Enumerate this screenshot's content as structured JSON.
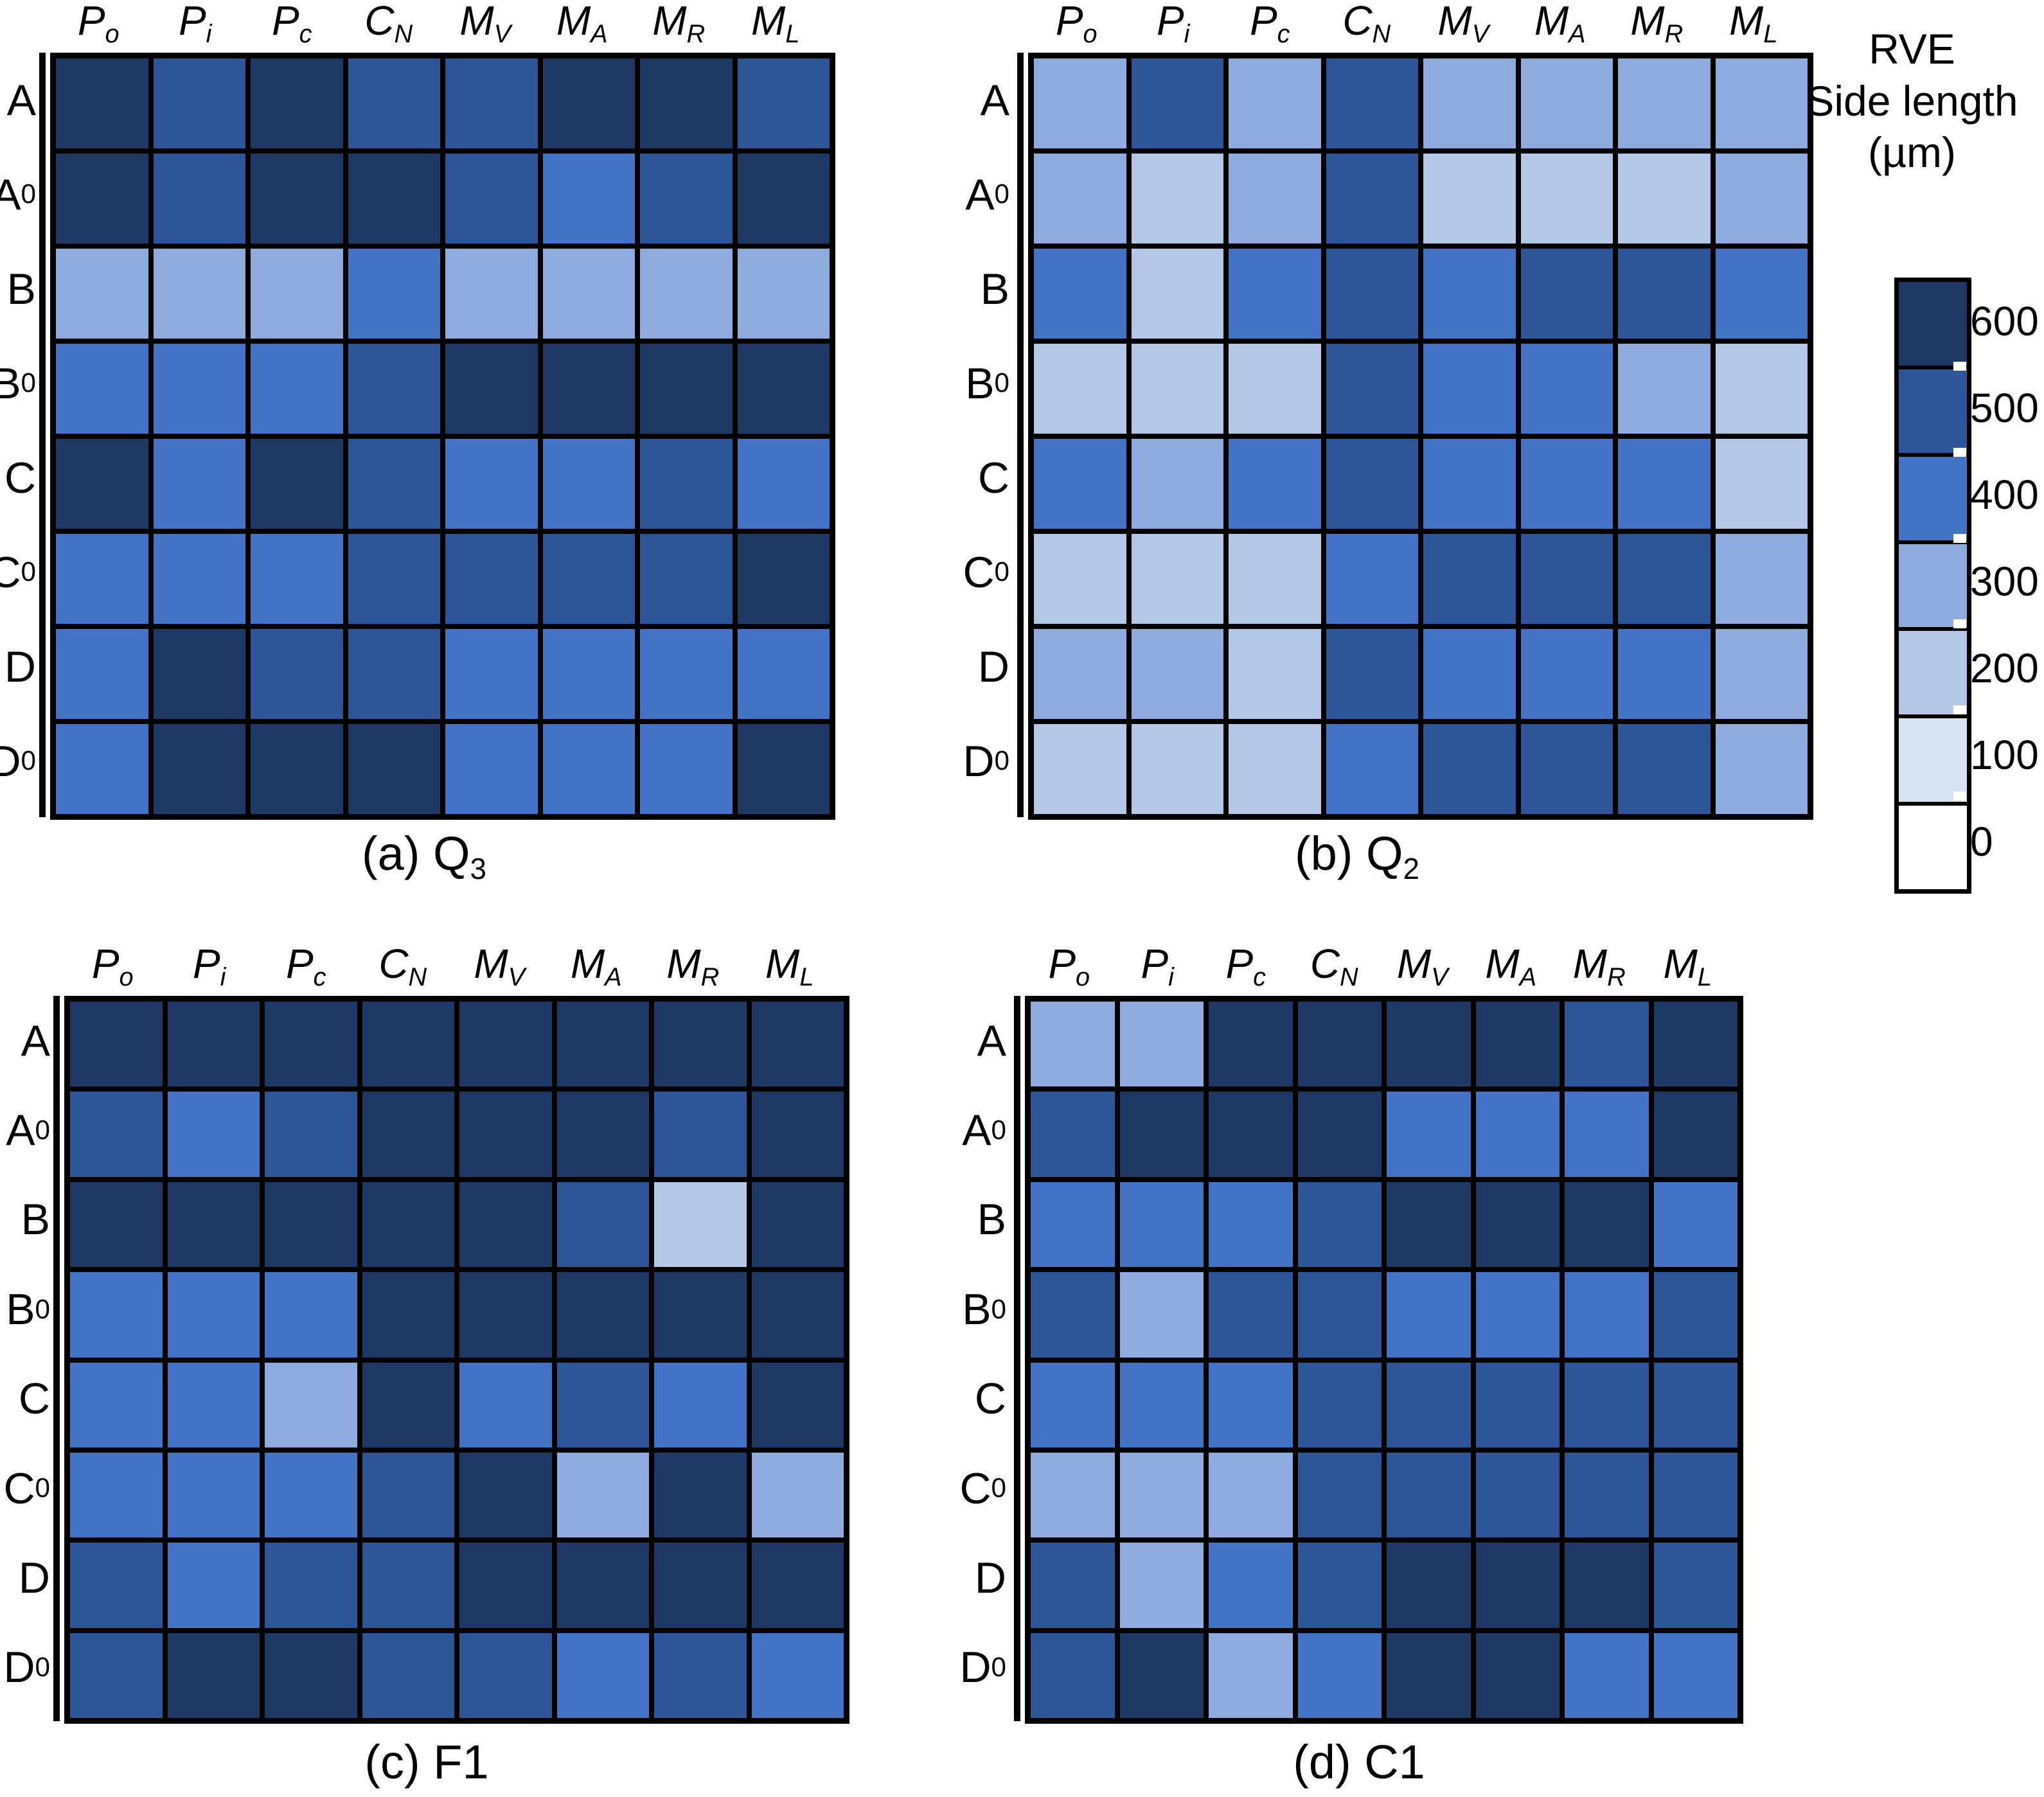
{
  "legend": {
    "title_lines": [
      "RVE",
      "Side length",
      "(µm)"
    ],
    "ticks": [
      "600",
      "500",
      "400",
      "300",
      "200",
      "100",
      "0"
    ],
    "palette": {
      "600": "#1F3864",
      "500": "#2E5597",
      "400": "#4472C4",
      "300": "#8FAADC",
      "200": "#B4C7E7",
      "100": "#D9E2F3",
      "0": "#FFFFFF"
    }
  },
  "columns": [
    {
      "base": "P",
      "sub": "o"
    },
    {
      "base": "P",
      "sub": "i"
    },
    {
      "base": "P",
      "sub": "c"
    },
    {
      "base": "C",
      "sub": "N"
    },
    {
      "base": "M",
      "sub": "V"
    },
    {
      "base": "M",
      "sub": "A"
    },
    {
      "base": "M",
      "sub": "R"
    },
    {
      "base": "M",
      "sub": "L"
    }
  ],
  "rows": [
    {
      "base": "A",
      "sub": ""
    },
    {
      "base": "A",
      "sub": "0"
    },
    {
      "base": "B",
      "sub": ""
    },
    {
      "base": "B",
      "sub": "0"
    },
    {
      "base": "C",
      "sub": ""
    },
    {
      "base": "C",
      "sub": "0"
    },
    {
      "base": "D",
      "sub": ""
    },
    {
      "base": "D",
      "sub": "0"
    }
  ],
  "heatmaps": [
    {
      "id": "a",
      "caption": {
        "prefix": "(a) ",
        "base": "Q",
        "sub": "3"
      }
    },
    {
      "id": "b",
      "caption": {
        "prefix": "(b) ",
        "base": "Q",
        "sub": "2"
      }
    },
    {
      "id": "c",
      "caption": {
        "prefix": "(c) ",
        "base": "F1",
        "sub": ""
      }
    },
    {
      "id": "d",
      "caption": {
        "prefix": "(d) ",
        "base": "C1",
        "sub": ""
      }
    }
  ],
  "chart_data": [
    {
      "type": "heatmap",
      "title": "(a) Q_3",
      "x_labels": [
        "P_o",
        "P_i",
        "P_c",
        "C_N",
        "M_V",
        "M_A",
        "M_R",
        "M_L"
      ],
      "y_labels": [
        "A",
        "A_0",
        "B",
        "B_0",
        "C",
        "C_0",
        "D",
        "D_0"
      ],
      "value_label": "RVE Side length (µm)",
      "value_range": [
        0,
        600
      ],
      "values": [
        [
          600,
          500,
          600,
          500,
          500,
          600,
          600,
          500
        ],
        [
          600,
          500,
          600,
          600,
          500,
          400,
          500,
          600
        ],
        [
          300,
          300,
          300,
          400,
          300,
          300,
          300,
          300
        ],
        [
          400,
          400,
          400,
          500,
          600,
          600,
          600,
          600
        ],
        [
          600,
          400,
          600,
          500,
          400,
          400,
          500,
          400
        ],
        [
          400,
          400,
          400,
          500,
          500,
          500,
          500,
          600
        ],
        [
          400,
          600,
          500,
          500,
          400,
          400,
          400,
          400
        ],
        [
          400,
          600,
          600,
          600,
          400,
          400,
          400,
          600
        ]
      ]
    },
    {
      "type": "heatmap",
      "title": "(b) Q_2",
      "x_labels": [
        "P_o",
        "P_i",
        "P_c",
        "C_N",
        "M_V",
        "M_A",
        "M_R",
        "M_L"
      ],
      "y_labels": [
        "A",
        "A_0",
        "B",
        "B_0",
        "C",
        "C_0",
        "D",
        "D_0"
      ],
      "value_label": "RVE Side length (µm)",
      "value_range": [
        0,
        600
      ],
      "values": [
        [
          300,
          500,
          300,
          500,
          300,
          300,
          300,
          300
        ],
        [
          300,
          200,
          300,
          500,
          200,
          200,
          200,
          300
        ],
        [
          400,
          200,
          400,
          500,
          400,
          500,
          500,
          400
        ],
        [
          200,
          200,
          200,
          500,
          400,
          400,
          300,
          200
        ],
        [
          400,
          300,
          400,
          500,
          400,
          400,
          400,
          200
        ],
        [
          200,
          200,
          200,
          400,
          500,
          500,
          500,
          300
        ],
        [
          300,
          300,
          200,
          500,
          400,
          400,
          400,
          300
        ],
        [
          200,
          200,
          200,
          400,
          500,
          500,
          500,
          300
        ]
      ]
    },
    {
      "type": "heatmap",
      "title": "(c) F1",
      "x_labels": [
        "P_o",
        "P_i",
        "P_c",
        "C_N",
        "M_V",
        "M_A",
        "M_R",
        "M_L"
      ],
      "y_labels": [
        "A",
        "A_0",
        "B",
        "B_0",
        "C",
        "C_0",
        "D",
        "D_0"
      ],
      "value_label": "RVE Side length (µm)",
      "value_range": [
        0,
        600
      ],
      "values": [
        [
          600,
          600,
          600,
          600,
          600,
          600,
          600,
          600
        ],
        [
          500,
          400,
          500,
          600,
          600,
          600,
          500,
          600
        ],
        [
          600,
          600,
          600,
          600,
          600,
          500,
          200,
          600
        ],
        [
          400,
          400,
          400,
          600,
          600,
          600,
          600,
          600
        ],
        [
          400,
          400,
          300,
          600,
          400,
          500,
          400,
          600
        ],
        [
          400,
          400,
          400,
          500,
          600,
          300,
          600,
          300
        ],
        [
          500,
          400,
          500,
          500,
          600,
          600,
          600,
          600
        ],
        [
          500,
          600,
          600,
          500,
          500,
          400,
          500,
          400
        ]
      ]
    },
    {
      "type": "heatmap",
      "title": "(d) C1",
      "x_labels": [
        "P_o",
        "P_i",
        "P_c",
        "C_N",
        "M_V",
        "M_A",
        "M_R",
        "M_L"
      ],
      "y_labels": [
        "A",
        "A_0",
        "B",
        "B_0",
        "C",
        "C_0",
        "D",
        "D_0"
      ],
      "value_label": "RVE Side length (µm)",
      "value_range": [
        0,
        600
      ],
      "values": [
        [
          300,
          300,
          600,
          600,
          600,
          600,
          500,
          600
        ],
        [
          500,
          600,
          600,
          600,
          400,
          400,
          400,
          600
        ],
        [
          400,
          400,
          400,
          500,
          600,
          600,
          600,
          400
        ],
        [
          500,
          300,
          500,
          500,
          400,
          400,
          400,
          500
        ],
        [
          400,
          400,
          400,
          500,
          500,
          500,
          500,
          500
        ],
        [
          300,
          300,
          300,
          500,
          500,
          500,
          500,
          500
        ],
        [
          500,
          300,
          400,
          500,
          600,
          600,
          600,
          500
        ],
        [
          500,
          600,
          300,
          400,
          600,
          600,
          400,
          400
        ]
      ]
    }
  ]
}
